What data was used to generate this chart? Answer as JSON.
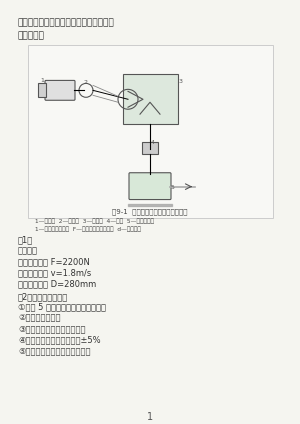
{
  "title_line1": "设计题目：一级圆锥齿轮减速器传动方案",
  "title_line2": "运动简图：",
  "fig_caption": "图9-1  单级圆锥减速器传动装置简图",
  "fig_labels": "1—电动机  2—弹性轴  3—减速器  4—滚筒  5—输送带零件\n1—带轮边带行进度  F—原机齿速带标准里占  d—带轮直径",
  "section1_title": "（1）",
  "data_title": "原始数据",
  "data_line1": "运输带牵引力 F=2200N",
  "data_line2": "运输带线速度 v=1.8m/s",
  "data_line3": "驱动滚筒直径 D=280mm",
  "section2_title": "（2）工作条件及要求",
  "req1": "①使用 5 年，双班制工作，单向工作",
  "req2": "②载荷有轻微冲击",
  "req3": "③运送煤、灰、沙等松散物质",
  "req4": "④运输带线速度允许误差为±5%",
  "req5": "⑤有中等规模机械厂个数量生产",
  "page_num": "1",
  "bg_color": "#f5f5f0",
  "text_color": "#555555",
  "border_color": "#cccccc",
  "diagram_bg": "#f8f8f5"
}
